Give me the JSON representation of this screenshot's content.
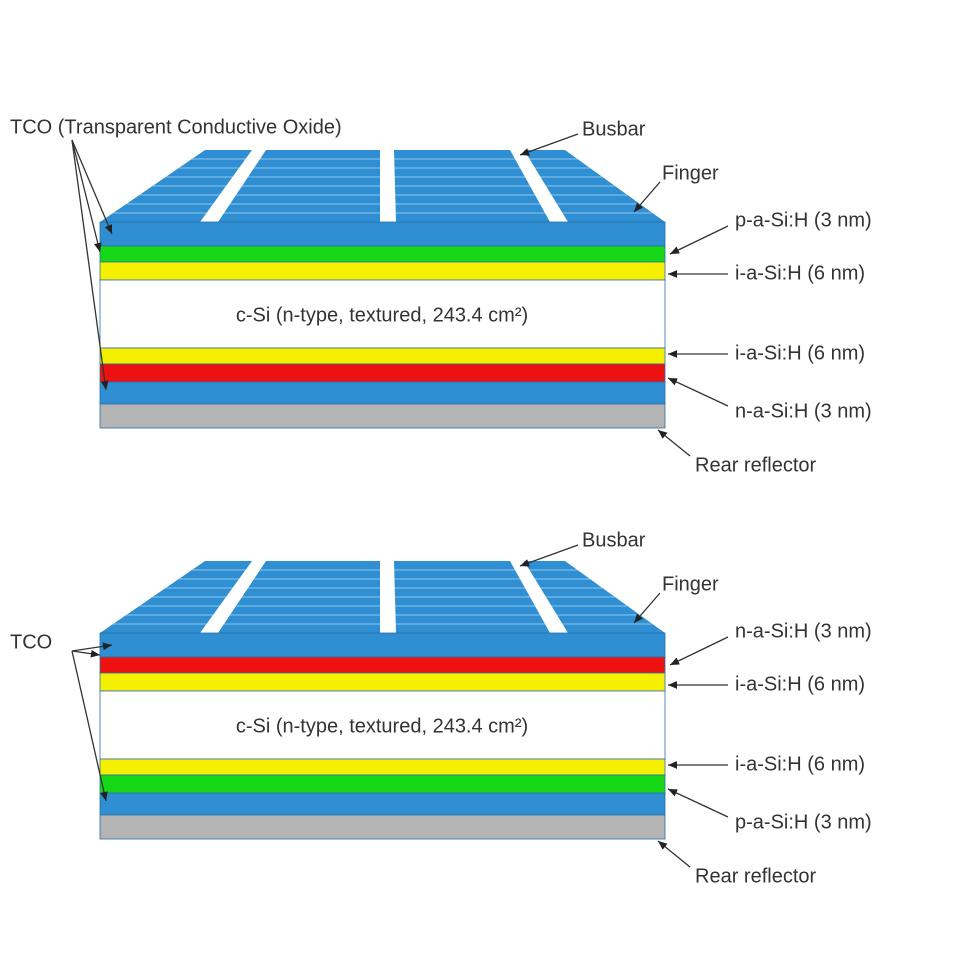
{
  "diagrams": [
    {
      "tco": "TCO (Transparent Conductive Oxide)",
      "busbar": "Busbar",
      "finger": "Finger",
      "layers": [
        "p-a-Si:H (3 nm)",
        "i-a-Si:H (6 nm)",
        "i-a-Si:H (6 nm)",
        "n-a-Si:H (3 nm)"
      ],
      "substrate": "c-Si (n-type, textured, 243.4 cm²)",
      "reflector": "Rear reflector"
    },
    {
      "tco": "TCO",
      "busbar": "Busbar",
      "finger": "Finger",
      "layers": [
        "n-a-Si:H (3 nm)",
        "i-a-Si:H (6 nm)",
        "i-a-Si:H (6 nm)",
        "p-a-Si:H  (3 nm)"
      ],
      "substrate": "c-Si (n-type, textured, 243.4 cm²)",
      "reflector": "Rear reflector"
    }
  ]
}
